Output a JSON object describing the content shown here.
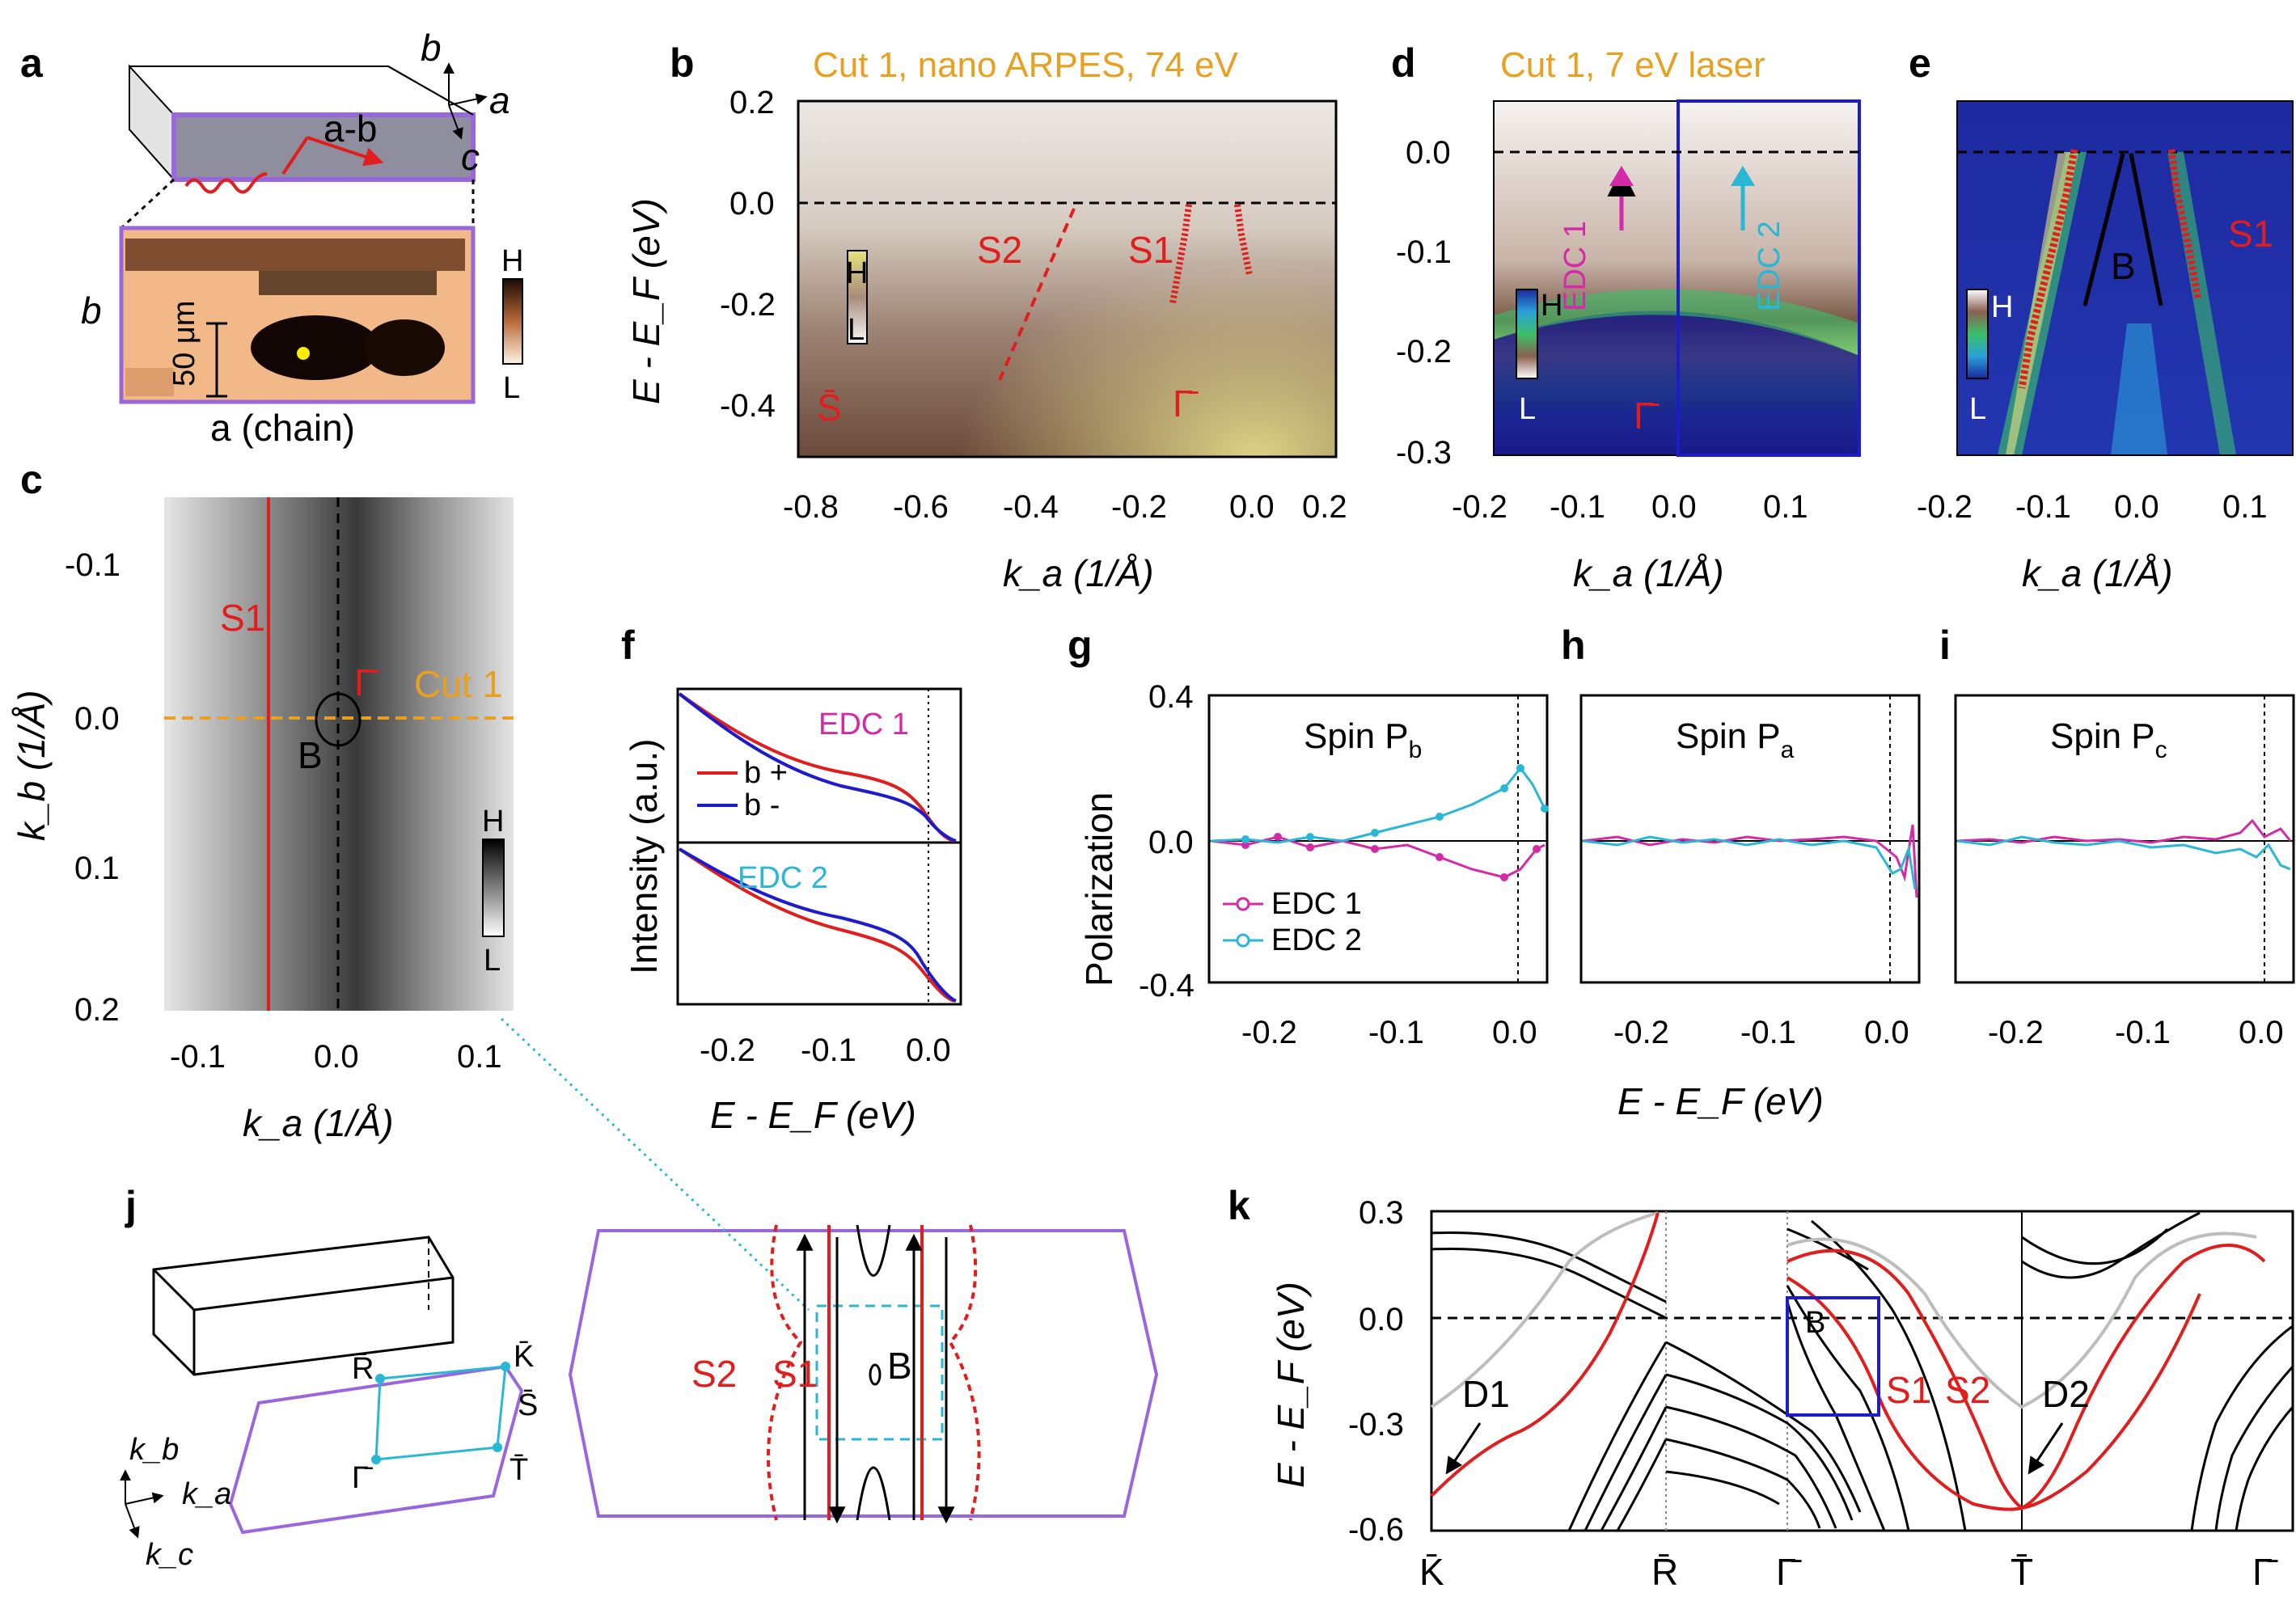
{
  "panel_labels": {
    "a": "a",
    "b": "b",
    "c": "c",
    "d": "d",
    "e": "e",
    "f": "f",
    "g": "g",
    "h": "h",
    "i": "i",
    "j": "j",
    "k": "k"
  },
  "panel_a": {
    "face_label": "a-b",
    "axis_b": "b",
    "axis_a": "a",
    "axis_c": "c",
    "vertical_label": "b",
    "horizontal_label": "a (chain)",
    "scalebar": "50 μm",
    "cbar_high": "H",
    "cbar_low": "L"
  },
  "panel_b": {
    "title": "Cut 1, nano ARPES, 74 eV",
    "title_color": "#e8a020",
    "ylabel": "E - E_F (eV)",
    "xlabel": "k_a (1/Å)",
    "yticks": [
      "0.2",
      "0.0",
      "-0.2",
      "-0.4"
    ],
    "xticks": [
      "-0.8",
      "-0.6",
      "-0.4",
      "-0.2",
      "0.0",
      "0.2"
    ],
    "label_s2": "S2",
    "label_s1": "S1",
    "label_sbar": "S̄",
    "label_gamma": "Γ̄",
    "cbar_high": "H",
    "cbar_low": "L"
  },
  "panel_c": {
    "ylabel": "k_b (1/Å)",
    "xlabel": "k_a (1/Å)",
    "yticks": [
      "-0.1",
      "0.0",
      "0.1",
      "0.2"
    ],
    "xticks": [
      "-0.1",
      "0.0",
      "0.1"
    ],
    "label_s1": "S1",
    "label_gamma": "Γ̄",
    "label_cut": "Cut 1",
    "label_b": "B",
    "cbar_high": "H",
    "cbar_low": "L"
  },
  "panel_d": {
    "title": "Cut 1, 7 eV laser",
    "title_color": "#e8a020",
    "yticks": [
      "0.0",
      "-0.1",
      "-0.2",
      "-0.3"
    ],
    "xticks": [
      "-0.2",
      "-0.1",
      "0.0",
      "0.1"
    ],
    "xlabel": "k_a (1/Å)",
    "edc1": "EDC 1",
    "edc2": "EDC 2",
    "label_gamma": "Γ̄",
    "cbar_high": "H",
    "cbar_low": "L"
  },
  "panel_e": {
    "xticks": [
      "-0.2",
      "-0.1",
      "0.0",
      "0.1"
    ],
    "xlabel": "k_a (1/Å)",
    "label_b": "B",
    "label_s1": "S1",
    "cbar_high": "H",
    "cbar_low": "L"
  },
  "panel_f": {
    "ylabel": "Intensity (a.u.)",
    "xlabel": "E - E_F (eV)",
    "xticks": [
      "-0.2",
      "-0.1",
      "0.0"
    ],
    "edc1": "EDC 1",
    "edc2": "EDC 2",
    "legend": [
      "b +",
      "b -"
    ]
  },
  "panel_ghi": {
    "ylabel": "Polarization",
    "xlabel": "E - E_F (eV)",
    "yticks": [
      "0.4",
      "0.0",
      "-0.4"
    ],
    "xticks": [
      "-0.2",
      "-0.1",
      "0.0"
    ],
    "titles": [
      "Spin P",
      "Spin P",
      "Spin P"
    ],
    "subs": [
      "b",
      "a",
      "c"
    ],
    "legend": [
      "EDC 1",
      "EDC 2"
    ]
  },
  "panel_j": {
    "kb": "k_b",
    "ka": "k_a",
    "kc": "k_c",
    "points": [
      "R̄",
      "K̄",
      "S̄",
      "Γ̄",
      "T̄"
    ],
    "label_s2": "S2",
    "label_s1": "S1",
    "label_b": "B"
  },
  "panel_k": {
    "ylabel": "E - E_F (eV)",
    "yticks": [
      "0.3",
      "0.0",
      "-0.3",
      "-0.6"
    ],
    "xticks": [
      "K̄",
      "R̄",
      "Γ̄",
      "T̄",
      "Γ̄"
    ],
    "label_d1": "D1",
    "label_d2": "D2",
    "label_b": "B",
    "label_s1": "S1",
    "label_s2": "S2"
  },
  "colors": {
    "red": "#e11d1d",
    "magenta": "#d42aa8",
    "cyan": "#29b7d6",
    "blue": "#1c1ccc",
    "orange": "#e8a020",
    "purple": "#9966dd"
  }
}
